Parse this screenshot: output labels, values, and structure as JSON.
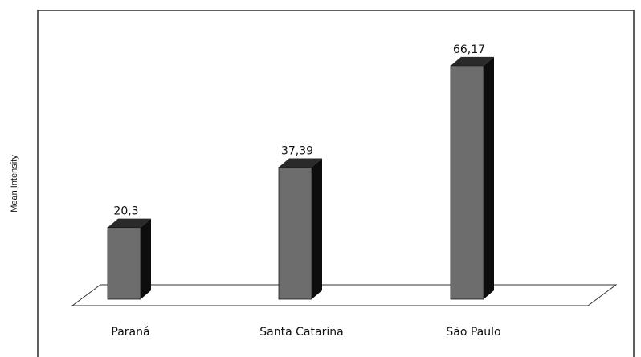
{
  "chart_data": {
    "type": "bar",
    "ylabel": "Mean Intensity",
    "categories": [
      "Paraná",
      "Santa Catarina",
      "São Paulo"
    ],
    "values": [
      20.3,
      37.39,
      66.17
    ],
    "data_labels": [
      "20,3",
      "37,39",
      "66,17"
    ],
    "ylim": [
      0,
      70
    ],
    "grid": false,
    "legend": "none",
    "style": "3d-column",
    "colors": {
      "bar_front": "#6d6d6d",
      "bar_side": "#0d0d0d",
      "bar_top": "#2a2a2a",
      "floor_fill": "#ffffff",
      "floor_stroke": "#333333",
      "frame_stroke": "#2b2b2b"
    }
  }
}
